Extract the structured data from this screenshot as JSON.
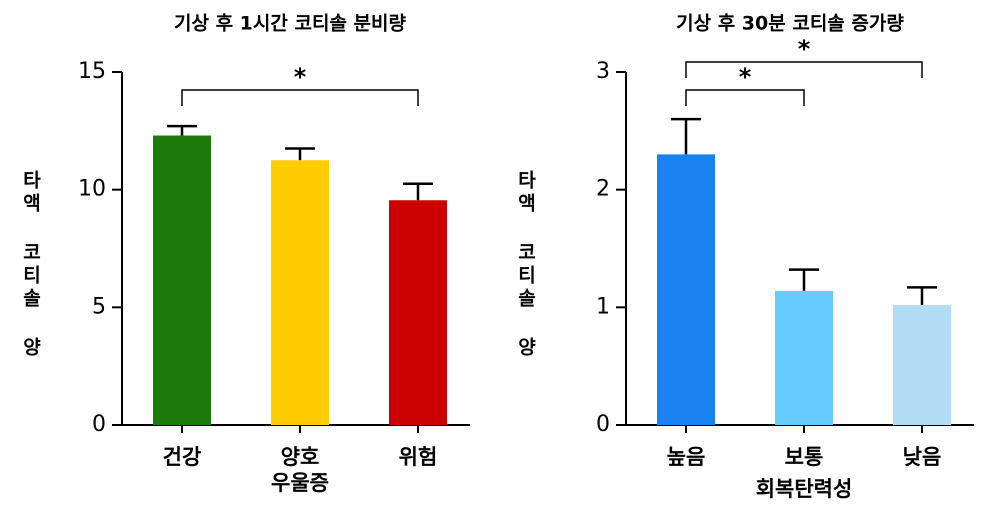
{
  "chart_data": [
    {
      "type": "bar",
      "title": "기상 후 1시간 코티솔 분비량",
      "y_label": "타액 코티솔 양",
      "categories": [
        "건강",
        "양호 우울증",
        "위험"
      ],
      "values": [
        12.3,
        11.25,
        9.55
      ],
      "errors": [
        0.4,
        0.5,
        0.7
      ],
      "colors": [
        "#1a7a0a",
        "#ffcc00",
        "#cc0000"
      ],
      "ylim": [
        0,
        15
      ],
      "yticks": [
        0,
        5,
        10,
        15
      ],
      "significance": [
        {
          "from": 0,
          "to": 2,
          "label": "*"
        }
      ]
    },
    {
      "type": "bar",
      "title": "기상 후 30분 코티솔 증가량",
      "y_label": "타액 코티솔 양",
      "x_label": "회복탄력성",
      "categories": [
        "높음",
        "보통",
        "낮음"
      ],
      "values": [
        2.3,
        1.14,
        1.02
      ],
      "errors": [
        0.3,
        0.18,
        0.15
      ],
      "colors": [
        "#1a82f0",
        "#66ccff",
        "#b3dcf5"
      ],
      "ylim": [
        0,
        3
      ],
      "yticks": [
        0,
        1,
        2,
        3
      ],
      "significance": [
        {
          "from": 0,
          "to": 1,
          "label": "*"
        },
        {
          "from": 0,
          "to": 2,
          "label": "*"
        }
      ]
    }
  ]
}
